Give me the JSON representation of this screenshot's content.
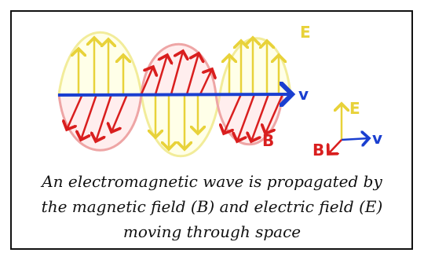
{
  "labels": {
    "wave_e": "E",
    "wave_v": "v",
    "wave_b": "B",
    "axis_e": "E",
    "axis_v": "v",
    "axis_b": "B"
  },
  "caption": [
    "An electromagnetic wave is propagated by",
    "the magnetic field (B) and electric field (E)",
    "moving through space"
  ]
}
